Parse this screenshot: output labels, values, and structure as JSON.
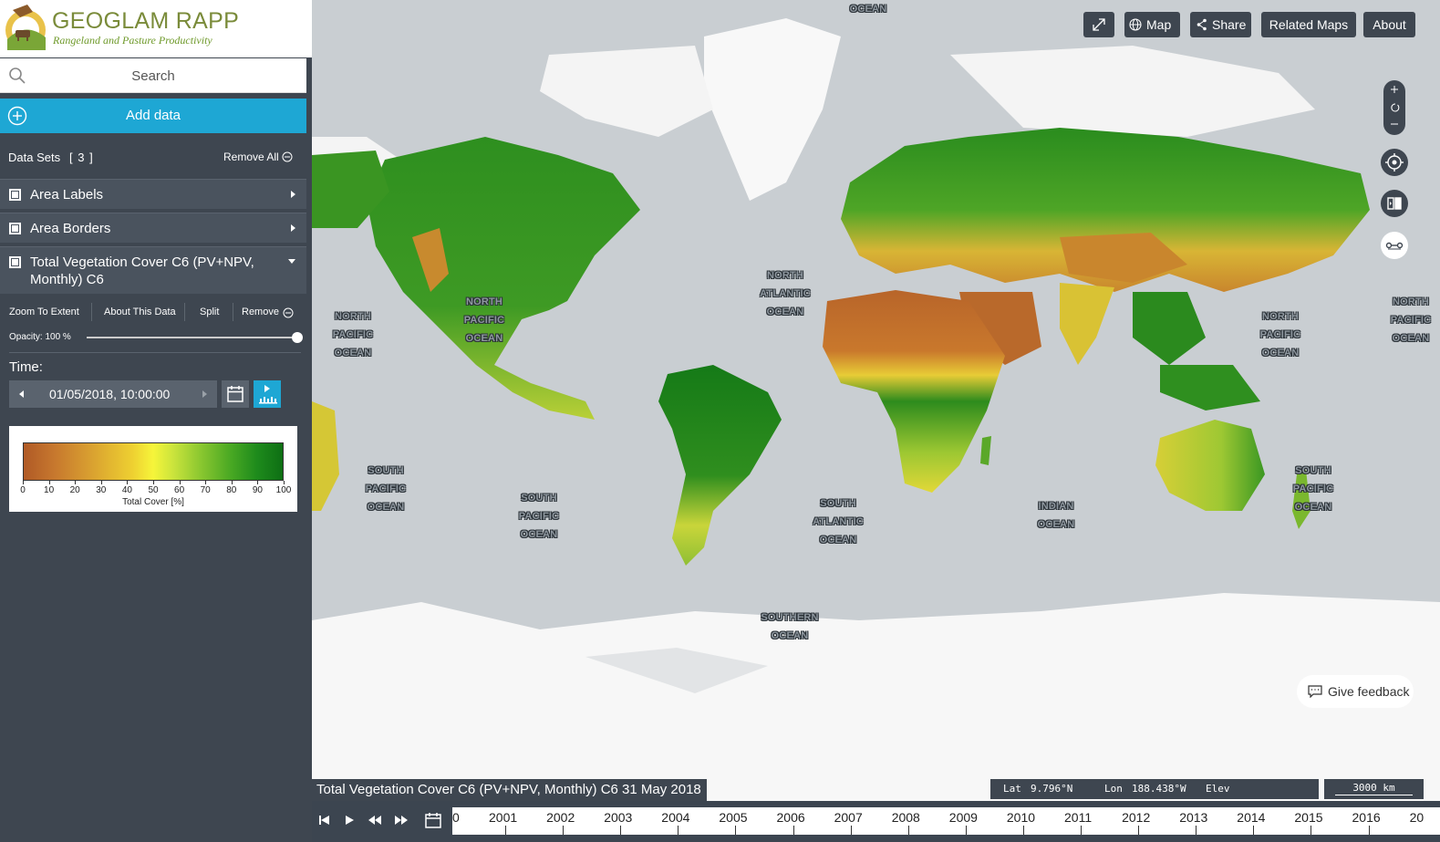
{
  "branding": {
    "title": "GEOGLAM RAPP",
    "subtitle": "Rangeland and Pasture Productivity"
  },
  "search": {
    "placeholder": "Search"
  },
  "add_data": {
    "label": "Add data"
  },
  "datasets": {
    "label": "Data Sets",
    "count": "[ 3 ]",
    "remove_all": "Remove All",
    "items": [
      {
        "name": "Area Labels",
        "expanded": false
      },
      {
        "name": "Area Borders",
        "expanded": false
      },
      {
        "name": "Total Vegetation Cover C6 (PV+NPV, Monthly) C6",
        "expanded": true
      }
    ]
  },
  "details": {
    "zoom_to_extent": "Zoom To Extent",
    "about_this_data": "About This Data",
    "split": "Split",
    "remove": "Remove",
    "opacity_label": "Opacity: 100 %",
    "opacity_value": 1.0,
    "time_label": "Time:",
    "time_value": "01/05/2018, 10:00:00"
  },
  "legend": {
    "ticks": [
      "0",
      "10",
      "20",
      "30",
      "40",
      "50",
      "60",
      "70",
      "80",
      "90",
      "100"
    ],
    "title": "Total Cover [%]",
    "colors": [
      "#b05a26",
      "#d9a030",
      "#f6f53a",
      "#8cc830",
      "#0e6f14"
    ]
  },
  "toolbar": {
    "map": "Map",
    "share": "Share",
    "related_maps": "Related Maps",
    "about": "About"
  },
  "ocean_labels": {
    "top": "OCEAN",
    "north_pacific": "NORTH PACIFIC OCEAN",
    "north_atlantic": "NORTH ATLANTIC OCEAN",
    "south_pacific": "SOUTH PACIFIC OCEAN",
    "south_atlantic": "SOUTH ATLANTIC OCEAN",
    "indian": "INDIAN OCEAN",
    "southern": "SOUTHERN OCEAN"
  },
  "feedback": {
    "label": "Give feedback"
  },
  "status": {
    "layer_title": "Total Vegetation Cover C6 (PV+NPV, Monthly) C6 31 May 2018",
    "lat_label": "Lat",
    "lat_value": "9.796°N",
    "lon_label": "Lon",
    "lon_value": "188.438°W",
    "elev_label": "Elev",
    "scale": "3000 km"
  },
  "timeline": {
    "years": [
      "2001",
      "2002",
      "2003",
      "2004",
      "2005",
      "2006",
      "2007",
      "2008",
      "2009",
      "2010",
      "2011",
      "2012",
      "2013",
      "2014",
      "2015",
      "2016"
    ],
    "first_fragment": "0",
    "last_fragment": "20"
  }
}
